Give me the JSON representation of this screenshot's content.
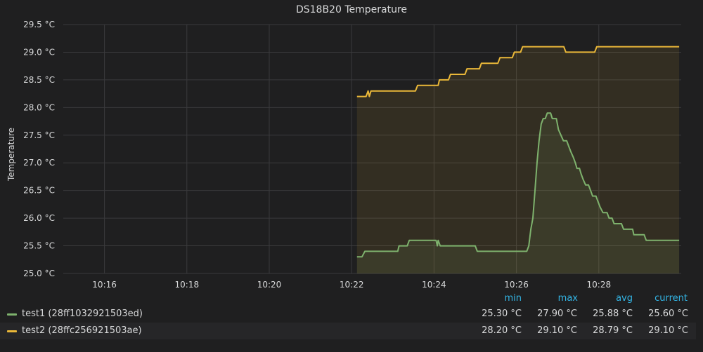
{
  "chart_data": {
    "type": "line",
    "title": "DS18B20 Temperature",
    "ylabel": "Temperature",
    "xlabel": "",
    "unit": "°C",
    "x_range_minutes": [
      15.0,
      30.0
    ],
    "ylim": [
      25.0,
      29.5
    ],
    "x_ticks": [
      {
        "m": 16,
        "label": "10:16"
      },
      {
        "m": 18,
        "label": "10:18"
      },
      {
        "m": 20,
        "label": "10:20"
      },
      {
        "m": 22,
        "label": "10:22"
      },
      {
        "m": 24,
        "label": "10:24"
      },
      {
        "m": 26,
        "label": "10:26"
      },
      {
        "m": 28,
        "label": "10:28"
      }
    ],
    "y_ticks": [
      {
        "v": 25.0,
        "label": "25.0 °C"
      },
      {
        "v": 25.5,
        "label": "25.5 °C"
      },
      {
        "v": 26.0,
        "label": "26.0 °C"
      },
      {
        "v": 26.5,
        "label": "26.5 °C"
      },
      {
        "v": 27.0,
        "label": "27.0 °C"
      },
      {
        "v": 27.5,
        "label": "27.5 °C"
      },
      {
        "v": 28.0,
        "label": "28.0 °C"
      },
      {
        "v": 28.5,
        "label": "28.5 °C"
      },
      {
        "v": 29.0,
        "label": "29.0 °C"
      },
      {
        "v": 29.5,
        "label": "29.5 °C"
      }
    ],
    "series": [
      {
        "name": "test1 (28ff1032921503ed)",
        "color": "#7eb26d",
        "points": [
          [
            22.13,
            25.3
          ],
          [
            22.25,
            25.3
          ],
          [
            22.32,
            25.4
          ],
          [
            22.5,
            25.4
          ],
          [
            23.0,
            25.4
          ],
          [
            23.12,
            25.4
          ],
          [
            23.15,
            25.5
          ],
          [
            23.35,
            25.5
          ],
          [
            23.4,
            25.6
          ],
          [
            23.7,
            25.6
          ],
          [
            24.05,
            25.6
          ],
          [
            24.08,
            25.5
          ],
          [
            24.1,
            25.6
          ],
          [
            24.15,
            25.5
          ],
          [
            24.5,
            25.5
          ],
          [
            25.0,
            25.5
          ],
          [
            25.05,
            25.4
          ],
          [
            25.6,
            25.4
          ],
          [
            26.25,
            25.4
          ],
          [
            26.3,
            25.5
          ],
          [
            26.35,
            25.8
          ],
          [
            26.4,
            26.0
          ],
          [
            26.45,
            26.5
          ],
          [
            26.5,
            27.0
          ],
          [
            26.55,
            27.4
          ],
          [
            26.6,
            27.7
          ],
          [
            26.65,
            27.8
          ],
          [
            26.7,
            27.8
          ],
          [
            26.75,
            27.9
          ],
          [
            26.83,
            27.9
          ],
          [
            26.87,
            27.8
          ],
          [
            26.97,
            27.8
          ],
          [
            27.02,
            27.6
          ],
          [
            27.08,
            27.5
          ],
          [
            27.14,
            27.4
          ],
          [
            27.22,
            27.4
          ],
          [
            27.27,
            27.3
          ],
          [
            27.32,
            27.2
          ],
          [
            27.38,
            27.1
          ],
          [
            27.43,
            27.0
          ],
          [
            27.47,
            26.9
          ],
          [
            27.53,
            26.9
          ],
          [
            27.57,
            26.8
          ],
          [
            27.62,
            26.7
          ],
          [
            27.68,
            26.6
          ],
          [
            27.75,
            26.6
          ],
          [
            27.8,
            26.5
          ],
          [
            27.85,
            26.4
          ],
          [
            27.93,
            26.4
          ],
          [
            27.98,
            26.3
          ],
          [
            28.03,
            26.2
          ],
          [
            28.1,
            26.1
          ],
          [
            28.2,
            26.1
          ],
          [
            28.25,
            26.0
          ],
          [
            28.32,
            26.0
          ],
          [
            28.37,
            25.9
          ],
          [
            28.55,
            25.9
          ],
          [
            28.6,
            25.8
          ],
          [
            28.82,
            25.8
          ],
          [
            28.85,
            25.7
          ],
          [
            29.1,
            25.7
          ],
          [
            29.15,
            25.6
          ],
          [
            29.4,
            25.6
          ],
          [
            29.95,
            25.6
          ]
        ]
      },
      {
        "name": "test2 (28ffc256921503ae)",
        "color": "#eab839",
        "points": [
          [
            22.13,
            28.2
          ],
          [
            22.35,
            28.2
          ],
          [
            22.4,
            28.3
          ],
          [
            22.43,
            28.2
          ],
          [
            22.47,
            28.3
          ],
          [
            23.0,
            28.3
          ],
          [
            23.55,
            28.3
          ],
          [
            23.6,
            28.4
          ],
          [
            24.1,
            28.4
          ],
          [
            24.13,
            28.5
          ],
          [
            24.35,
            28.5
          ],
          [
            24.4,
            28.6
          ],
          [
            24.75,
            28.6
          ],
          [
            24.8,
            28.7
          ],
          [
            25.1,
            28.7
          ],
          [
            25.15,
            28.8
          ],
          [
            25.55,
            28.8
          ],
          [
            25.6,
            28.9
          ],
          [
            25.9,
            28.9
          ],
          [
            25.95,
            29.0
          ],
          [
            26.1,
            29.0
          ],
          [
            26.15,
            29.1
          ],
          [
            26.5,
            29.1
          ],
          [
            27.15,
            29.1
          ],
          [
            27.2,
            29.0
          ],
          [
            27.9,
            29.0
          ],
          [
            27.95,
            29.1
          ],
          [
            28.5,
            29.1
          ],
          [
            29.95,
            29.1
          ]
        ]
      }
    ],
    "legend": {
      "headers": {
        "min": "min",
        "max": "max",
        "avg": "avg",
        "current": "current"
      },
      "rows": [
        {
          "name": "test1 (28ff1032921503ed)",
          "color": "#7eb26d",
          "min": "25.30 °C",
          "max": "27.90 °C",
          "avg": "25.88 °C",
          "current": "25.60 °C"
        },
        {
          "name": "test2 (28ffc256921503ae)",
          "color": "#eab839",
          "min": "28.20 °C",
          "max": "29.10 °C",
          "avg": "28.79 °C",
          "current": "29.10 °C"
        }
      ]
    }
  }
}
